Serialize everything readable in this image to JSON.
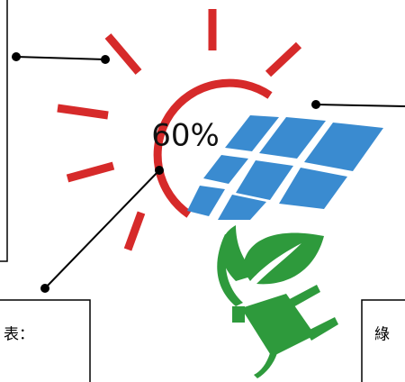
{
  "center_label": "60%",
  "left_box": {
    "text": "表："
  },
  "right_box": {
    "text": "綠"
  }
}
